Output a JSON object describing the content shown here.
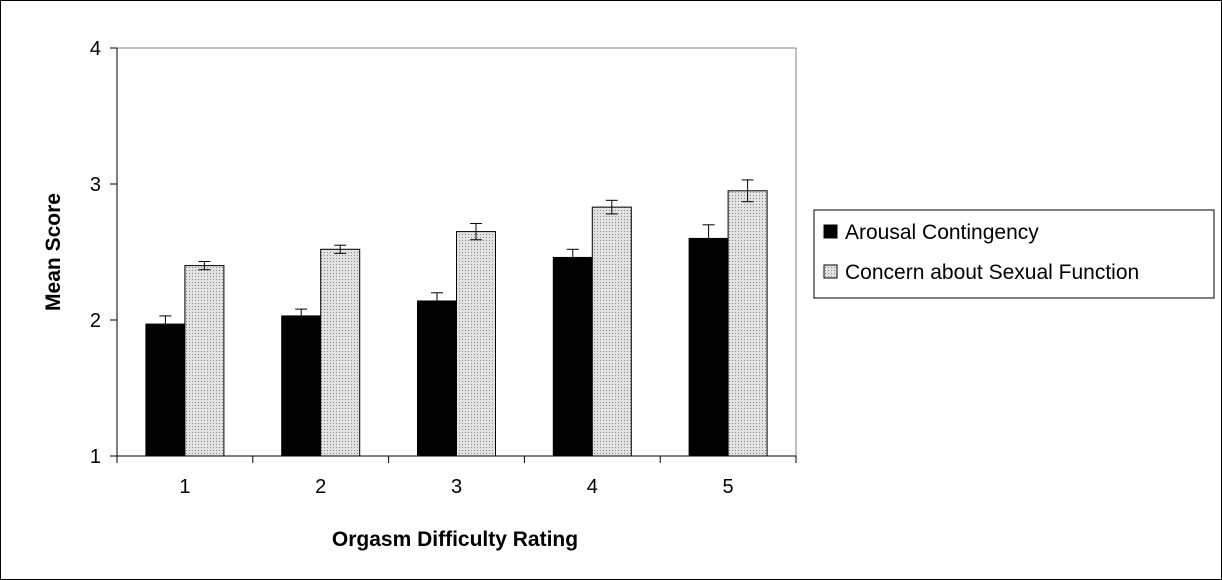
{
  "chart_data": {
    "type": "bar",
    "xlabel": "Orgasm Difficulty Rating",
    "ylabel": "Mean Score",
    "categories": [
      "1",
      "2",
      "3",
      "4",
      "5"
    ],
    "ylim": [
      1,
      4
    ],
    "yticks": [
      "1",
      "2",
      "3",
      "4"
    ],
    "grid": false,
    "legend_position": "right",
    "series": [
      {
        "name": "Arousal Contingency",
        "color": "#000000",
        "values": [
          1.97,
          2.03,
          2.14,
          2.46,
          2.6
        ],
        "error": [
          0.06,
          0.05,
          0.06,
          0.06,
          0.1
        ]
      },
      {
        "name": "Concern about Sexual Function",
        "color": "#c8c8c8",
        "pattern": "dotted",
        "values": [
          2.4,
          2.52,
          2.65,
          2.83,
          2.95
        ],
        "error": [
          0.03,
          0.03,
          0.06,
          0.05,
          0.08
        ]
      }
    ]
  }
}
